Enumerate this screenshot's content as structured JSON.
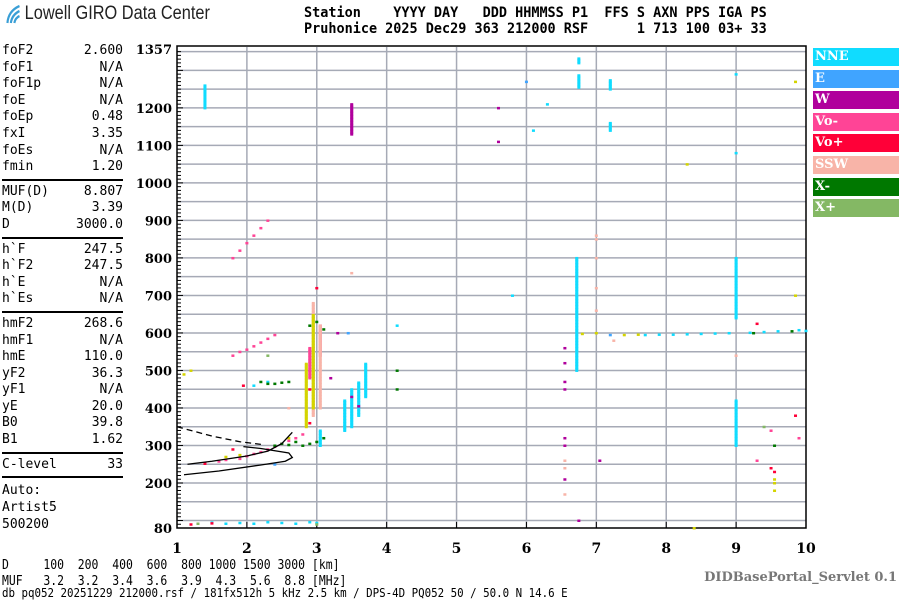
{
  "logo": {
    "text": "Lowell GIRO Data Center"
  },
  "header": {
    "line1": "Station    YYYY DAY   DDD HHMMSS P1  FFS S AXN PPS IGA PS",
    "line2": "Pruhonice 2025 Dec29 363 212000 RSF      1 713 100 03+ 33"
  },
  "params": {
    "group1": [
      {
        "label": "foF2",
        "value": "2.600"
      },
      {
        "label": "foF1",
        "value": "N/A"
      },
      {
        "label": "foF1p",
        "value": "N/A"
      },
      {
        "label": "foE",
        "value": "N/A"
      },
      {
        "label": "foEp",
        "value": "0.48"
      },
      {
        "label": "fxI",
        "value": "3.35"
      },
      {
        "label": "foEs",
        "value": "N/A"
      },
      {
        "label": "fmin",
        "value": "1.20"
      }
    ],
    "group2": [
      {
        "label": "MUF(D)",
        "value": "8.807"
      },
      {
        "label": "M(D)",
        "value": "3.39"
      },
      {
        "label": "D",
        "value": "3000.0"
      }
    ],
    "group3": [
      {
        "label": "h`F",
        "value": "247.5"
      },
      {
        "label": "h`F2",
        "value": "247.5"
      },
      {
        "label": "h`E",
        "value": "N/A"
      },
      {
        "label": "h`Es",
        "value": "N/A"
      }
    ],
    "group4": [
      {
        "label": "hmF2",
        "value": "268.6"
      },
      {
        "label": "hmF1",
        "value": "N/A"
      },
      {
        "label": "hmE",
        "value": "110.0"
      },
      {
        "label": "yF2",
        "value": "36.3"
      },
      {
        "label": "yF1",
        "value": "N/A"
      },
      {
        "label": "yE",
        "value": "20.0"
      },
      {
        "label": "B0",
        "value": "39.8"
      },
      {
        "label": "B1",
        "value": "1.62"
      }
    ],
    "group5": [
      {
        "label": "C-level",
        "value": "33"
      }
    ],
    "auto": [
      "Auto:",
      "Artist5",
      "500200"
    ]
  },
  "legend": [
    {
      "label": "NNE",
      "color": "#10dcff"
    },
    {
      "label": "E",
      "color": "#40a4ff"
    },
    {
      "label": "W",
      "color": "#b0009c"
    },
    {
      "label": "Vo-",
      "color": "#ff4496"
    },
    {
      "label": "Vo+",
      "color": "#ff0038"
    },
    {
      "label": "SSW",
      "color": "#f8b4a8"
    },
    {
      "label": "X-",
      "color": "#007800"
    },
    {
      "label": "X+",
      "color": "#84b864"
    }
  ],
  "footer": {
    "d_row": "D     100  200  400  600  800 1000 1500 3000 [km]",
    "muf_row": "MUF   3.2  3.2  3.4  3.6  3.9  4.3  5.6  8.8 [MHz]",
    "db_line": "db pq052 20251229 212000.rsf / 181fx512h 5 kHz 2.5 km / DPS-4D PQ052 50 / 50.0 N 14.6 E",
    "servlet": "DIDBasePortal_Servlet 0.1"
  },
  "chart_data": {
    "type": "scatter",
    "xlabel": "",
    "ylabel": "",
    "xlim": [
      1,
      10
    ],
    "ylim": [
      80,
      1357
    ],
    "xticks": [
      "1",
      "2",
      "3",
      "4",
      "5",
      "6",
      "7",
      "8",
      "9",
      "10"
    ],
    "yticks": [
      "80",
      "200",
      "300",
      "400",
      "500",
      "600",
      "700",
      "800",
      "900",
      "1000",
      "1100",
      "1200",
      "1357"
    ],
    "grid": true,
    "legend_position": "right",
    "series": [
      {
        "name": "NNE",
        "color": "#10dcff",
        "runs": [
          [
            1.4,
            1200,
            1260
          ],
          [
            6.72,
            500,
            800
          ],
          [
            6.75,
            1255,
            1290
          ],
          [
            6.75,
            1320,
            1335
          ],
          [
            7.2,
            1140,
            1160
          ],
          [
            7.2,
            1250,
            1275
          ],
          [
            9.0,
            300,
            420
          ],
          [
            9.0,
            640,
            800
          ],
          [
            3.4,
            340,
            420
          ],
          [
            3.5,
            350,
            450
          ],
          [
            3.6,
            380,
            470
          ],
          [
            3.7,
            430,
            520
          ],
          [
            3.05,
            300,
            340
          ]
        ],
        "points": [
          [
            7.7,
            595
          ],
          [
            7.9,
            596
          ],
          [
            8.1,
            596
          ],
          [
            8.3,
            597
          ],
          [
            8.5,
            598
          ],
          [
            8.7,
            599
          ],
          [
            8.9,
            600
          ],
          [
            9.2,
            601
          ],
          [
            9.4,
            603
          ],
          [
            9.6,
            605
          ],
          [
            9.9,
            608
          ],
          [
            10,
            606
          ],
          [
            1.5,
            95
          ],
          [
            1.7,
            92
          ],
          [
            1.9,
            94
          ],
          [
            2.1,
            92
          ],
          [
            2.3,
            96
          ],
          [
            2.5,
            94
          ],
          [
            2.7,
            92
          ],
          [
            2.9,
            96
          ],
          [
            3.0,
            94
          ],
          [
            2.3,
            470
          ],
          [
            2.1,
            460
          ],
          [
            4.15,
            620
          ],
          [
            5.8,
            700
          ],
          [
            6.3,
            1210
          ],
          [
            6.1,
            1140
          ],
          [
            9.0,
            1290
          ],
          [
            9.0,
            1080
          ]
        ]
      },
      {
        "name": "E",
        "color": "#40a4ff",
        "points": [
          [
            7.2,
            595
          ],
          [
            6.0,
            1270
          ],
          [
            3.45,
            600
          ],
          [
            2.4,
            250
          ]
        ]
      },
      {
        "name": "W",
        "color": "#b0009c",
        "runs": [
          [
            3.5,
            1130,
            1210
          ]
        ],
        "points": [
          [
            5.6,
            1200
          ],
          [
            5.6,
            1110
          ],
          [
            6.55,
            560
          ],
          [
            6.55,
            520
          ],
          [
            6.55,
            470
          ],
          [
            6.55,
            450
          ],
          [
            6.55,
            320
          ],
          [
            6.55,
            300
          ],
          [
            6.55,
            210
          ],
          [
            6.75,
            100
          ],
          [
            7.05,
            260
          ],
          [
            3.2,
            480
          ],
          [
            3.5,
            430
          ],
          [
            3.6,
            405
          ],
          [
            3.3,
            600
          ]
        ]
      },
      {
        "name": "Vo-",
        "color": "#ff4496",
        "runs": [
          [
            2.9,
            480,
            560
          ],
          [
            3.05,
            540,
            620
          ]
        ],
        "points": [
          [
            1.9,
            265
          ],
          [
            2.0,
            272
          ],
          [
            2.1,
            278
          ],
          [
            2.2,
            283
          ],
          [
            2.3,
            290
          ],
          [
            2.4,
            297
          ],
          [
            2.5,
            305
          ],
          [
            2.6,
            313
          ],
          [
            2.7,
            320
          ],
          [
            2.8,
            330
          ],
          [
            1.7,
            262
          ],
          [
            1.6,
            258
          ],
          [
            1.8,
            540
          ],
          [
            1.9,
            550
          ],
          [
            2.0,
            556
          ],
          [
            2.1,
            565
          ],
          [
            2.2,
            575
          ],
          [
            2.3,
            585
          ],
          [
            2.4,
            595
          ],
          [
            1.8,
            800
          ],
          [
            1.9,
            820
          ],
          [
            2.0,
            840
          ],
          [
            2.1,
            860
          ],
          [
            2.2,
            880
          ],
          [
            2.3,
            900
          ],
          [
            9.5,
            340
          ],
          [
            9.3,
            260
          ],
          [
            9.9,
            320
          ]
        ]
      },
      {
        "name": "Vo+",
        "color": "#ff0038",
        "points": [
          [
            1.2,
            90
          ],
          [
            1.5,
            93
          ],
          [
            1.8,
            290
          ],
          [
            1.95,
            460
          ],
          [
            2.9,
            360
          ],
          [
            3.0,
            720
          ],
          [
            2.9,
            450
          ],
          [
            9.55,
            230
          ],
          [
            9.5,
            240
          ],
          [
            9.85,
            380
          ],
          [
            9.3,
            625
          ],
          [
            1.4,
            252
          ]
        ]
      },
      {
        "name": "SSW",
        "color": "#f8b4a8",
        "runs": [
          [
            2.95,
            380,
            680
          ],
          [
            3.05,
            400,
            620
          ]
        ],
        "points": [
          [
            6.55,
            240
          ],
          [
            6.55,
            170
          ],
          [
            6.55,
            260
          ],
          [
            7.0,
            660
          ],
          [
            7.0,
            720
          ],
          [
            7.0,
            850
          ],
          [
            7.0,
            860
          ],
          [
            7.0,
            800
          ],
          [
            7.25,
            580
          ],
          [
            9.0,
            540
          ],
          [
            3.5,
            760
          ],
          [
            2.6,
            400
          ]
        ]
      },
      {
        "name": "X-",
        "color": "#007800",
        "points": [
          [
            2.4,
            300
          ],
          [
            2.5,
            305
          ],
          [
            2.6,
            302
          ],
          [
            2.7,
            310
          ],
          [
            2.8,
            300
          ],
          [
            2.9,
            305
          ],
          [
            3.0,
            310
          ],
          [
            3.1,
            320
          ],
          [
            2.2,
            470
          ],
          [
            2.3,
            465
          ],
          [
            2.4,
            465
          ],
          [
            2.5,
            468
          ],
          [
            2.6,
            470
          ],
          [
            2.9,
            620
          ],
          [
            3.0,
            630
          ],
          [
            3.1,
            610
          ],
          [
            4.15,
            450
          ],
          [
            4.15,
            500
          ],
          [
            9.25,
            600
          ],
          [
            9.55,
            300
          ],
          [
            9.8,
            605
          ]
        ]
      },
      {
        "name": "X+",
        "color": "#84b864",
        "points": [
          [
            1.3,
            92
          ],
          [
            2.3,
            540
          ],
          [
            9.4,
            350
          ],
          [
            3.0,
            90
          ]
        ]
      },
      {
        "color": "#d4d400",
        "runs": [
          [
            2.85,
            350,
            520
          ],
          [
            2.95,
            400,
            650
          ]
        ],
        "points": [
          [
            1.1,
            490
          ],
          [
            1.2,
            500
          ],
          [
            1.7,
            270
          ],
          [
            1.9,
            275
          ],
          [
            2.6,
            320
          ],
          [
            9.85,
            1270
          ],
          [
            9.85,
            700
          ],
          [
            9.55,
            210
          ],
          [
            9.55,
            180
          ],
          [
            9.55,
            200
          ],
          [
            7.4,
            595
          ],
          [
            7.6,
            596
          ],
          [
            6.8,
            598
          ],
          [
            7.0,
            600
          ],
          [
            8.3,
            1050
          ],
          [
            8.4,
            80
          ]
        ]
      }
    ],
    "lines": [
      {
        "style": "solid",
        "color": "#000000",
        "points": [
          [
            1.15,
            250
          ],
          [
            1.5,
            258
          ],
          [
            2.0,
            272
          ],
          [
            2.3,
            285
          ],
          [
            2.5,
            305
          ],
          [
            2.65,
            335
          ]
        ]
      },
      {
        "style": "solid",
        "color": "#000000",
        "points": [
          [
            1.1,
            222
          ],
          [
            1.6,
            232
          ],
          [
            2.2,
            248
          ],
          [
            2.55,
            258
          ],
          [
            2.65,
            268
          ],
          [
            2.6,
            280
          ],
          [
            2.2,
            292
          ],
          [
            1.95,
            297
          ]
        ]
      },
      {
        "style": "dashed",
        "color": "#000000",
        "points": [
          [
            1.0,
            350
          ],
          [
            1.5,
            325
          ],
          [
            1.9,
            310
          ],
          [
            2.2,
            303
          ]
        ]
      }
    ]
  }
}
